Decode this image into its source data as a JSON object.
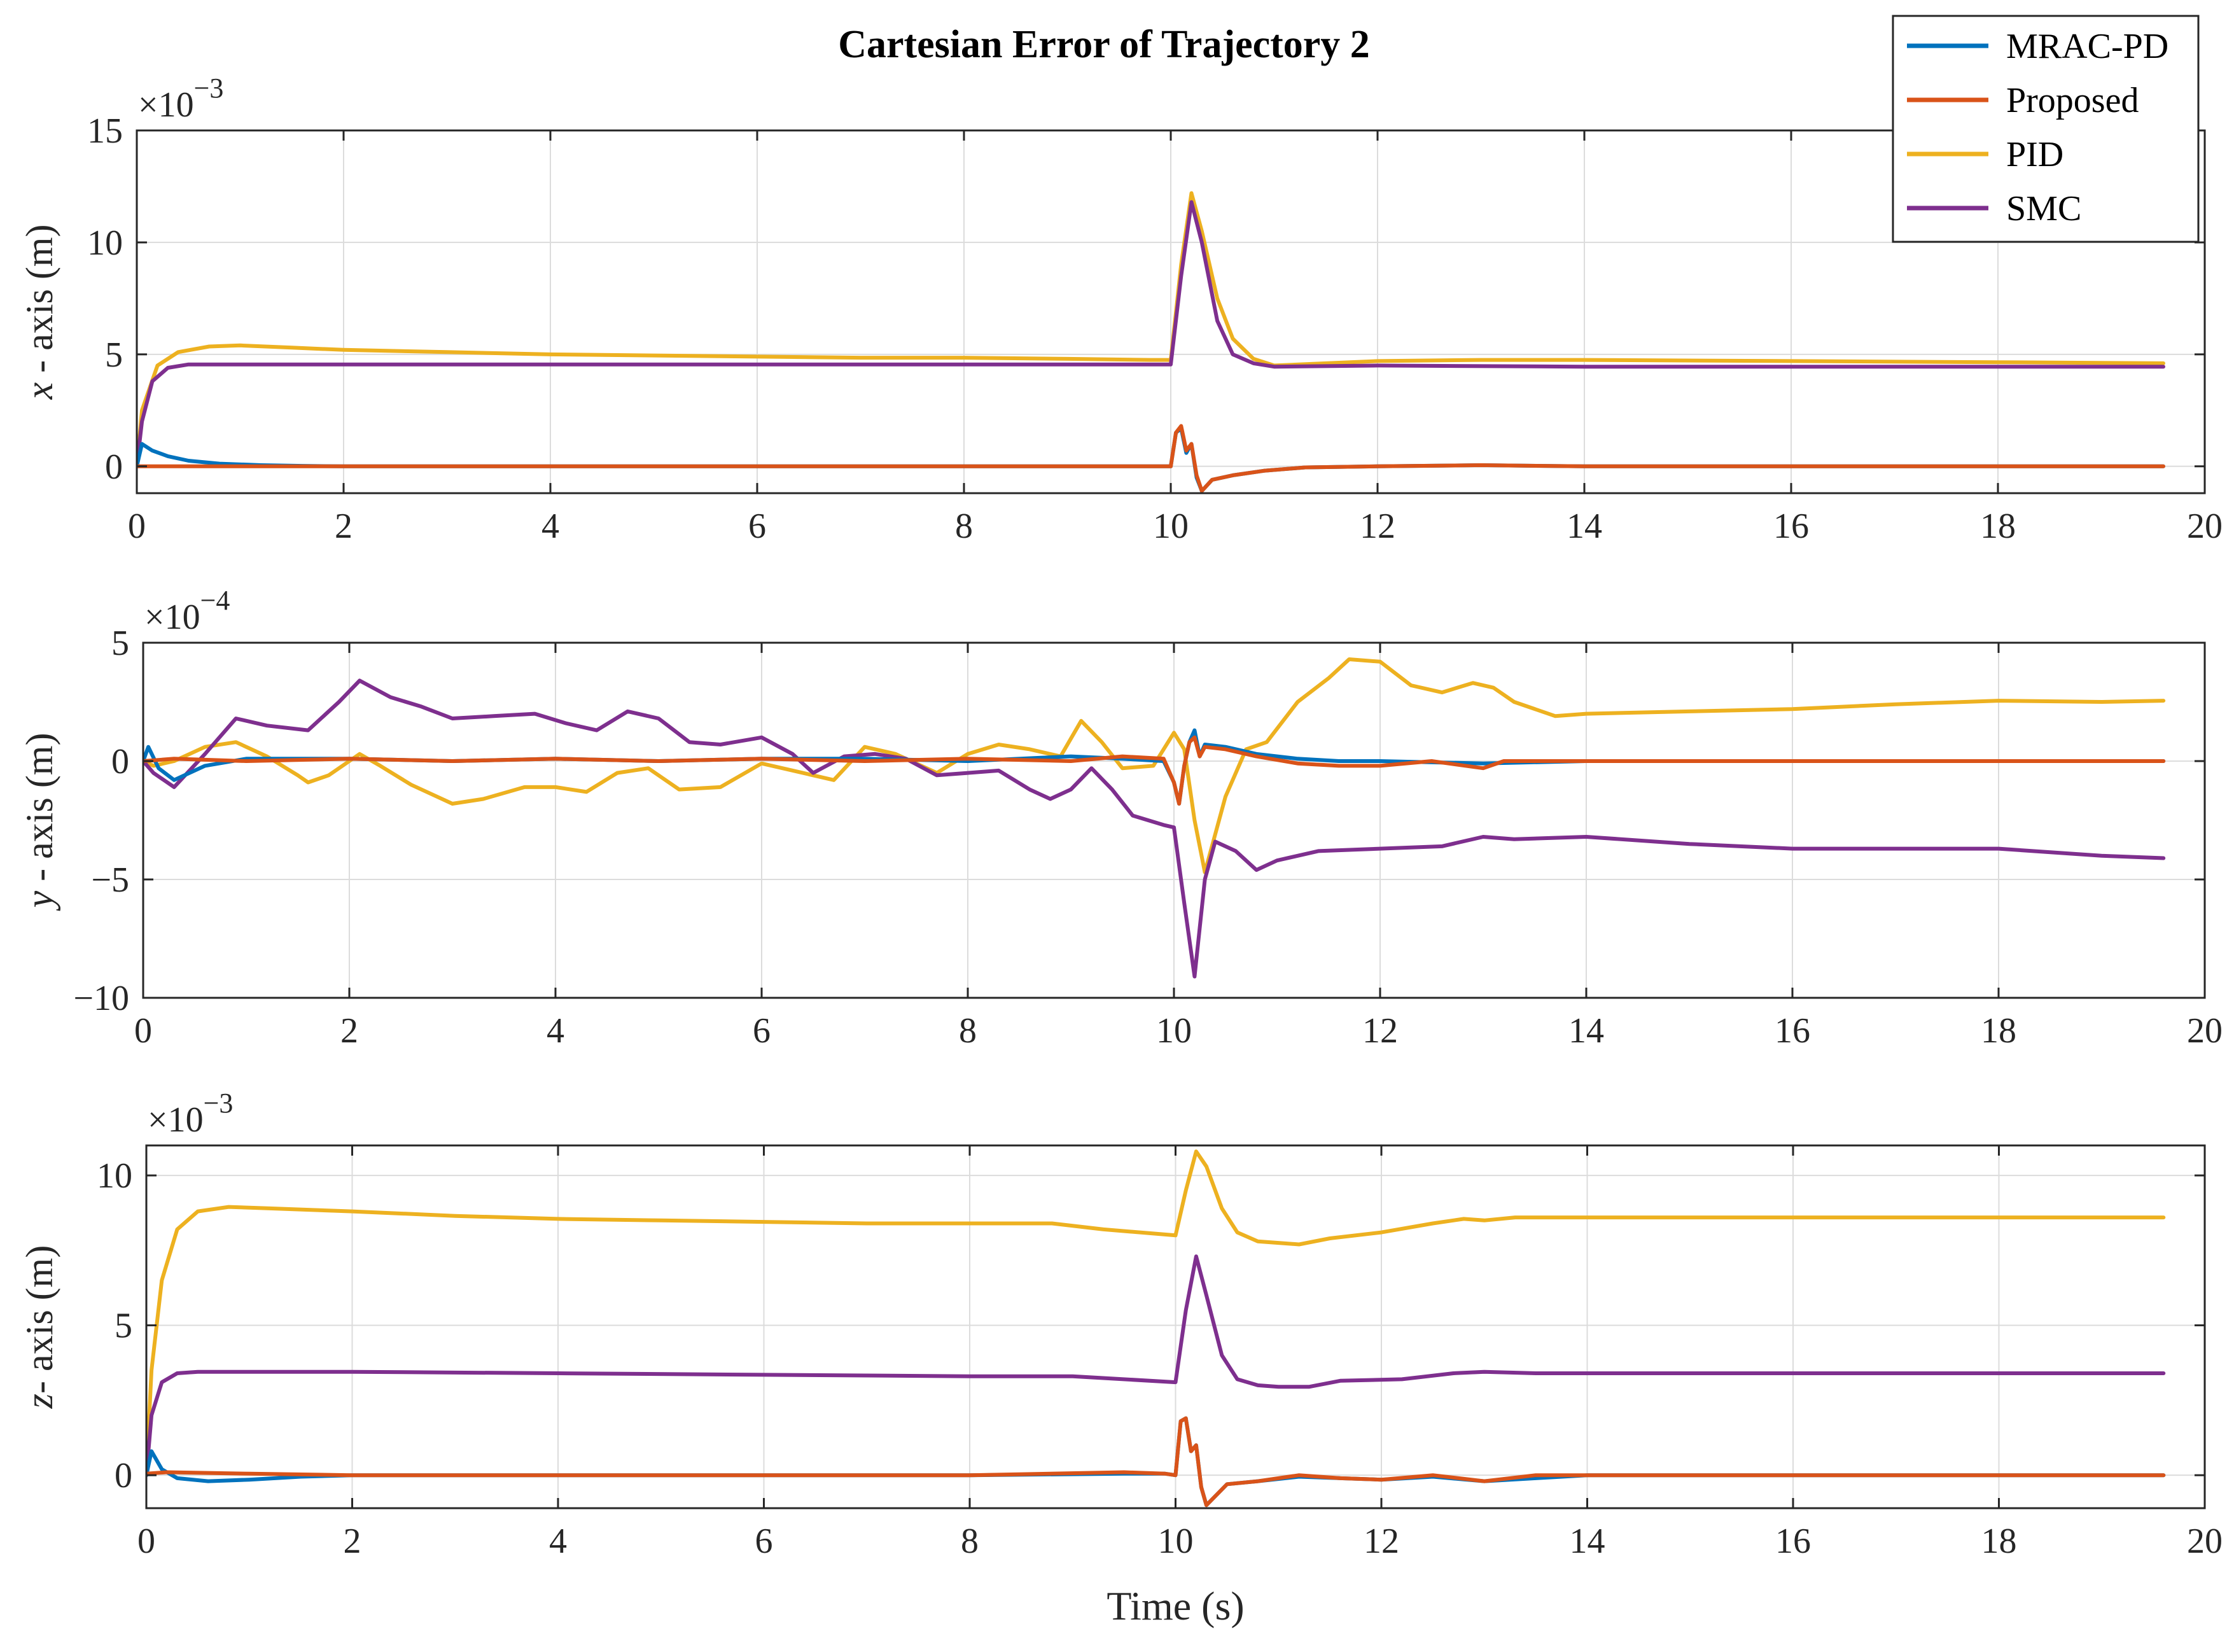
{
  "chart_data": [
    {
      "type": "line",
      "title": "Cartesian Error of Trajectory 2",
      "ylabel_var": "x",
      "ylabel_rest": " - axis (m)",
      "multiplier": "×10",
      "multiplier_exp": "−3",
      "xlim": [
        0,
        20
      ],
      "ylim": [
        -1.2,
        15
      ],
      "xticks": [
        0,
        2,
        4,
        6,
        8,
        10,
        12,
        14,
        16,
        18,
        20
      ],
      "yticks": [
        0,
        5,
        10,
        15
      ],
      "series": [
        {
          "name": "PID",
          "color": "#EDB120",
          "x": [
            0,
            0.05,
            0.2,
            0.4,
            0.7,
            1,
            1.5,
            2,
            3,
            4,
            5,
            6,
            7,
            8,
            9,
            9.8,
            10.0,
            10.1,
            10.2,
            10.3,
            10.45,
            10.6,
            10.8,
            11.0,
            11.5,
            12,
            13,
            14,
            16,
            18,
            19.6
          ],
          "y": [
            0,
            2.5,
            4.5,
            5.1,
            5.35,
            5.4,
            5.3,
            5.2,
            5.1,
            5.0,
            4.95,
            4.9,
            4.85,
            4.85,
            4.8,
            4.75,
            4.75,
            9.0,
            12.2,
            10.5,
            7.5,
            5.7,
            4.8,
            4.5,
            4.6,
            4.7,
            4.75,
            4.75,
            4.7,
            4.65,
            4.6
          ]
        },
        {
          "name": "SMC",
          "color": "#7E2F8E",
          "x": [
            0,
            0.05,
            0.15,
            0.3,
            0.5,
            1,
            2,
            4,
            6,
            8,
            9.5,
            10.0,
            10.1,
            10.2,
            10.3,
            10.45,
            10.6,
            10.8,
            11.0,
            12,
            14,
            16,
            18,
            19.6
          ],
          "y": [
            0,
            2.0,
            3.8,
            4.4,
            4.55,
            4.55,
            4.55,
            4.55,
            4.55,
            4.55,
            4.55,
            4.55,
            8.5,
            11.8,
            10.0,
            6.5,
            5.0,
            4.6,
            4.45,
            4.5,
            4.45,
            4.45,
            4.45,
            4.45
          ]
        },
        {
          "name": "MRAC-PD",
          "color": "#0072BD",
          "x": [
            0,
            0.05,
            0.15,
            0.3,
            0.5,
            0.8,
            1.2,
            1.6,
            2,
            3,
            6,
            10.0,
            10.05,
            10.1,
            10.15,
            10.2,
            10.25,
            10.3,
            10.4,
            10.6,
            10.9,
            11.3,
            12,
            13,
            14,
            16,
            18,
            19.6
          ],
          "y": [
            0,
            1.0,
            0.7,
            0.45,
            0.25,
            0.12,
            0.05,
            0.02,
            0,
            0,
            0,
            0,
            1.5,
            1.7,
            0.6,
            1.0,
            -0.5,
            -1.1,
            -0.6,
            -0.4,
            -0.2,
            -0.05,
            0,
            0.05,
            0,
            0,
            0,
            0
          ]
        },
        {
          "name": "Proposed",
          "color": "#D95319",
          "x": [
            0,
            2,
            6,
            10.0,
            10.05,
            10.1,
            10.15,
            10.2,
            10.25,
            10.3,
            10.4,
            10.6,
            10.9,
            11.3,
            12,
            13,
            14,
            16,
            18,
            19.6
          ],
          "y": [
            0,
            0,
            0,
            0,
            1.5,
            1.8,
            0.7,
            1.0,
            -0.4,
            -1.1,
            -0.6,
            -0.4,
            -0.2,
            -0.05,
            0,
            0.05,
            0,
            0,
            0,
            0
          ]
        }
      ],
      "legend_position": "top-right"
    },
    {
      "type": "line",
      "ylabel_var": "y",
      "ylabel_rest": " - axis (m)",
      "multiplier": "×10",
      "multiplier_exp": "−4",
      "xlim": [
        0,
        20
      ],
      "ylim": [
        -10,
        5
      ],
      "xticks": [
        0,
        2,
        4,
        6,
        8,
        10,
        12,
        14,
        16,
        18,
        20
      ],
      "yticks": [
        -10,
        -5,
        0,
        5
      ],
      "series": [
        {
          "name": "PID",
          "color": "#EDB120",
          "x": [
            0,
            0.1,
            0.3,
            0.6,
            0.9,
            1.2,
            1.5,
            1.6,
            1.8,
            2.1,
            2.3,
            2.6,
            3.0,
            3.3,
            3.7,
            4.0,
            4.3,
            4.6,
            4.9,
            5.2,
            5.6,
            6.0,
            6.4,
            6.7,
            7.0,
            7.3,
            7.7,
            8.0,
            8.3,
            8.6,
            8.9,
            9.1,
            9.3,
            9.5,
            9.8,
            10.0,
            10.1,
            10.2,
            10.3,
            10.5,
            10.7,
            10.9,
            11.2,
            11.5,
            11.7,
            12.0,
            12.3,
            12.6,
            12.9,
            13.1,
            13.3,
            13.7,
            14.0,
            15,
            16,
            17,
            18,
            19,
            19.6
          ],
          "y": [
            0,
            -0.2,
            0,
            0.6,
            0.8,
            0.2,
            -0.6,
            -0.9,
            -0.6,
            0.3,
            -0.2,
            -1.0,
            -1.8,
            -1.6,
            -1.1,
            -1.1,
            -1.3,
            -0.5,
            -0.3,
            -1.2,
            -1.1,
            -0.1,
            -0.5,
            -0.8,
            0.6,
            0.3,
            -0.5,
            0.3,
            0.7,
            0.5,
            0.2,
            1.7,
            0.8,
            -0.3,
            -0.2,
            1.2,
            0.5,
            -2.5,
            -4.7,
            -1.5,
            0.5,
            0.8,
            2.5,
            3.5,
            4.3,
            4.2,
            3.2,
            2.9,
            3.3,
            3.1,
            2.5,
            1.9,
            2.0,
            2.1,
            2.2,
            2.4,
            2.55,
            2.5,
            2.55
          ]
        },
        {
          "name": "SMC",
          "color": "#7E2F8E",
          "x": [
            0,
            0.1,
            0.3,
            0.6,
            0.9,
            1.2,
            1.6,
            1.9,
            2.1,
            2.4,
            2.7,
            3.0,
            3.4,
            3.8,
            4.1,
            4.4,
            4.7,
            5.0,
            5.3,
            5.6,
            6.0,
            6.3,
            6.5,
            6.8,
            7.1,
            7.4,
            7.7,
            8.0,
            8.3,
            8.6,
            8.8,
            9.0,
            9.2,
            9.4,
            9.6,
            9.9,
            10.0,
            10.1,
            10.2,
            10.3,
            10.4,
            10.6,
            10.8,
            11.0,
            11.4,
            12,
            12.6,
            13.0,
            13.3,
            14,
            15,
            16,
            17,
            18,
            19,
            19.6
          ],
          "y": [
            0,
            -0.5,
            -1.1,
            0.3,
            1.8,
            1.5,
            1.3,
            2.5,
            3.4,
            2.7,
            2.3,
            1.8,
            1.9,
            2.0,
            1.6,
            1.3,
            2.1,
            1.8,
            0.8,
            0.7,
            1.0,
            0.3,
            -0.5,
            0.2,
            0.3,
            0.1,
            -0.6,
            -0.5,
            -0.4,
            -1.2,
            -1.6,
            -1.2,
            -0.3,
            -1.2,
            -2.3,
            -2.7,
            -2.8,
            -6.0,
            -9.1,
            -5.0,
            -3.4,
            -3.8,
            -4.6,
            -4.2,
            -3.8,
            -3.7,
            -3.6,
            -3.2,
            -3.3,
            -3.2,
            -3.5,
            -3.7,
            -3.7,
            -3.7,
            -4.0,
            -4.1
          ]
        },
        {
          "name": "MRAC-PD",
          "color": "#0072BD",
          "x": [
            0,
            0.05,
            0.15,
            0.3,
            0.6,
            1.0,
            2.0,
            3.0,
            4.0,
            5.0,
            6.0,
            7.0,
            8.0,
            9.0,
            9.5,
            9.9,
            10.0,
            10.05,
            10.1,
            10.15,
            10.2,
            10.25,
            10.3,
            10.5,
            10.8,
            11.2,
            11.6,
            12,
            13,
            14,
            16,
            18,
            19.6
          ],
          "y": [
            0,
            0.6,
            -0.3,
            -0.8,
            -0.2,
            0.1,
            0.1,
            0.0,
            0.1,
            0.0,
            0.1,
            0.1,
            0.0,
            0.2,
            0.1,
            0.0,
            -0.9,
            -1.8,
            -0.2,
            0.8,
            1.3,
            0.2,
            0.7,
            0.6,
            0.3,
            0.1,
            0.0,
            0,
            -0.1,
            0,
            0,
            0,
            0
          ]
        },
        {
          "name": "Proposed",
          "color": "#D95319",
          "x": [
            0,
            0.3,
            1.0,
            2.0,
            3.0,
            4.0,
            5.0,
            6.0,
            7.0,
            8.0,
            9.0,
            9.5,
            9.9,
            10.0,
            10.05,
            10.1,
            10.15,
            10.2,
            10.25,
            10.3,
            10.5,
            10.8,
            11.2,
            11.6,
            12,
            12.5,
            13.0,
            13.2,
            14,
            16,
            18,
            19.6
          ],
          "y": [
            0,
            0.1,
            0.0,
            0.1,
            0.0,
            0.1,
            0.0,
            0.1,
            0.0,
            0.1,
            0.0,
            0.2,
            0.1,
            -0.9,
            -1.8,
            -0.2,
            0.8,
            1.0,
            0.2,
            0.6,
            0.5,
            0.2,
            -0.1,
            -0.2,
            -0.2,
            0.0,
            -0.3,
            0.0,
            0,
            0,
            0,
            0
          ]
        }
      ],
      "legend_position": "none"
    },
    {
      "type": "line",
      "xlabel": "Time (s)",
      "ylabel_var": "z",
      "ylabel_rest": "- axis (m)",
      "multiplier": "×10",
      "multiplier_exp": "−3",
      "xlim": [
        0,
        20
      ],
      "ylim": [
        -1.1,
        11
      ],
      "xticks": [
        0,
        2,
        4,
        6,
        8,
        10,
        12,
        14,
        16,
        18,
        20
      ],
      "yticks": [
        0,
        5,
        10
      ],
      "series": [
        {
          "name": "PID",
          "color": "#EDB120",
          "x": [
            0,
            0.05,
            0.15,
            0.3,
            0.5,
            0.8,
            1.2,
            2,
            3,
            4,
            5,
            6,
            7,
            8,
            8.8,
            9.3,
            10.0,
            10.1,
            10.2,
            10.3,
            10.45,
            10.6,
            10.8,
            11.0,
            11.2,
            11.5,
            12,
            12.5,
            12.8,
            13.0,
            13.3,
            14,
            16,
            18,
            19.6
          ],
          "y": [
            0,
            3.5,
            6.5,
            8.2,
            8.8,
            8.95,
            8.9,
            8.8,
            8.65,
            8.55,
            8.5,
            8.45,
            8.4,
            8.4,
            8.4,
            8.2,
            8.0,
            9.5,
            10.8,
            10.3,
            8.9,
            8.1,
            7.8,
            7.75,
            7.7,
            7.9,
            8.1,
            8.4,
            8.55,
            8.5,
            8.6,
            8.6,
            8.6,
            8.6,
            8.6
          ]
        },
        {
          "name": "SMC",
          "color": "#7E2F8E",
          "x": [
            0,
            0.05,
            0.15,
            0.3,
            0.5,
            1,
            2,
            4,
            6,
            8,
            9,
            10.0,
            10.1,
            10.2,
            10.3,
            10.45,
            10.6,
            10.8,
            11.0,
            11.3,
            11.6,
            12.2,
            12.7,
            13.0,
            13.5,
            14,
            16,
            18,
            19.6
          ],
          "y": [
            0,
            2.0,
            3.1,
            3.4,
            3.45,
            3.45,
            3.45,
            3.4,
            3.35,
            3.3,
            3.3,
            3.1,
            5.5,
            7.3,
            6.0,
            4.0,
            3.2,
            3.0,
            2.95,
            2.95,
            3.15,
            3.2,
            3.4,
            3.45,
            3.4,
            3.4,
            3.4,
            3.4,
            3.4
          ]
        },
        {
          "name": "MRAC-PD",
          "color": "#0072BD",
          "x": [
            0,
            0.05,
            0.15,
            0.3,
            0.6,
            1.0,
            1.5,
            2,
            3,
            4,
            6,
            8,
            9.5,
            9.9,
            10.0,
            10.05,
            10.1,
            10.15,
            10.2,
            10.25,
            10.3,
            10.5,
            10.8,
            11.2,
            11.6,
            12,
            12.5,
            13,
            13.5,
            14,
            16,
            18,
            19.6
          ],
          "y": [
            0,
            0.8,
            0.2,
            -0.1,
            -0.2,
            -0.15,
            -0.05,
            0,
            0,
            0,
            0,
            0,
            0.05,
            0.05,
            0,
            1.8,
            1.9,
            0.8,
            1.0,
            -0.4,
            -1.0,
            -0.3,
            -0.2,
            -0.05,
            -0.1,
            -0.15,
            -0.05,
            -0.2,
            -0.1,
            0,
            0,
            0,
            0
          ]
        },
        {
          "name": "Proposed",
          "color": "#D95319",
          "x": [
            0,
            0.2,
            1,
            2,
            3,
            4,
            6,
            8,
            9.5,
            9.9,
            10.0,
            10.05,
            10.1,
            10.15,
            10.2,
            10.25,
            10.3,
            10.5,
            10.8,
            11.2,
            11.6,
            12,
            12.5,
            13,
            13.5,
            14,
            16,
            18,
            19.6
          ],
          "y": [
            0.05,
            0.1,
            0.05,
            0,
            0,
            0,
            0,
            0,
            0.1,
            0.05,
            0,
            1.8,
            1.9,
            0.8,
            1.0,
            -0.4,
            -1.0,
            -0.3,
            -0.2,
            0,
            -0.1,
            -0.15,
            0,
            -0.2,
            0,
            0,
            0,
            0,
            0
          ]
        }
      ],
      "legend_position": "none"
    }
  ],
  "legend": {
    "entries": [
      {
        "name": "MRAC-PD",
        "color": "#0072BD"
      },
      {
        "name": "Proposed",
        "color": "#D95319"
      },
      {
        "name": "PID",
        "color": "#EDB120"
      },
      {
        "name": "SMC",
        "color": "#7E2F8E"
      }
    ]
  }
}
